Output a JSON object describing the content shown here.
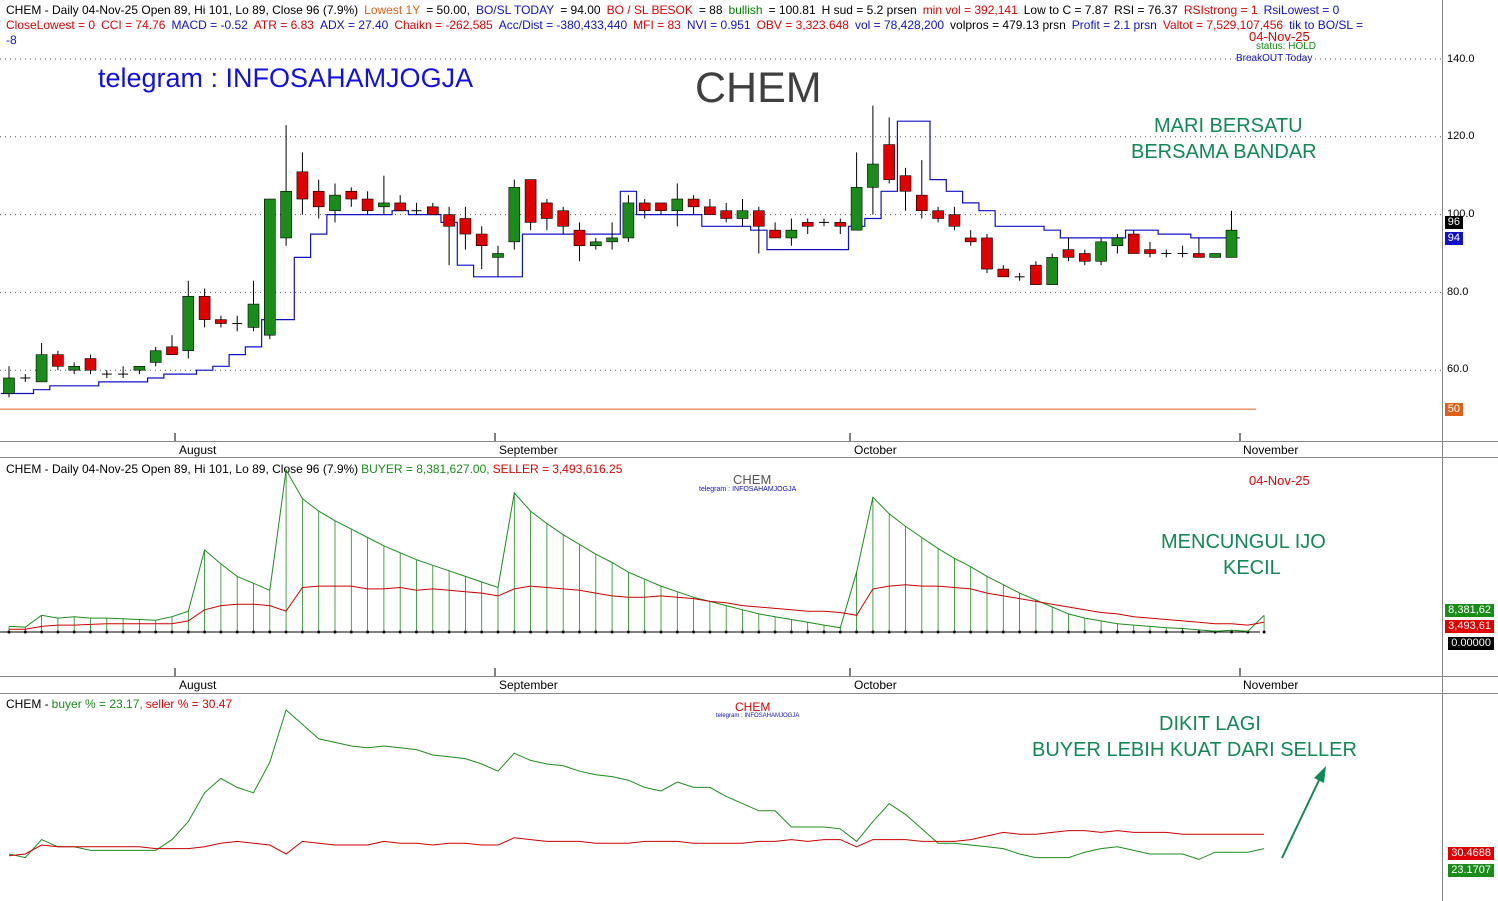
{
  "pane1": {
    "info_row1": [
      {
        "text": "CHEM - Daily 04-Nov-25 Open 89, Hi 101, Lo 89, Close 96 (7.9%)",
        "color": "#000"
      },
      {
        "text": "Lowest 1Y",
        "color": "#e0601a"
      },
      {
        "text": "= 50.00,",
        "color": "#000"
      },
      {
        "text": "BO/SL TODAY",
        "color": "#1010c8"
      },
      {
        "text": "= 94.00",
        "color": "#000"
      },
      {
        "text": "BO / SL BESOK",
        "color": "#e00000"
      },
      {
        "text": "= 88",
        "color": "#000"
      },
      {
        "text": "bullish",
        "color": "#008000"
      },
      {
        "text": "= 100.81",
        "color": "#000"
      },
      {
        "text": "H sud = 5.2 prsen",
        "color": "#000"
      },
      {
        "text": "min vol = 392,141",
        "color": "#e00000"
      },
      {
        "text": "Low to C = 7.87",
        "color": "#000"
      },
      {
        "text": "RSI = 76.37",
        "color": "#000"
      },
      {
        "text": "RSIstrong = 1",
        "color": "#e00000"
      },
      {
        "text": "RsiLowest = 0",
        "color": "#1010c8"
      }
    ],
    "info_row2": [
      {
        "text": "CloseLowest = 0",
        "color": "#e00000"
      },
      {
        "text": "CCI = 74.76",
        "color": "#e00000"
      },
      {
        "text": "MACD = -0.52",
        "color": "#1010c8"
      },
      {
        "text": "ATR = 6.83",
        "color": "#e00000"
      },
      {
        "text": "ADX = 27.40",
        "color": "#1010c8"
      },
      {
        "text": "Chaikn = -262,585",
        "color": "#e00000"
      },
      {
        "text": "Acc/Dist = -380,433,440",
        "color": "#1010c8"
      },
      {
        "text": "MFI = 83",
        "color": "#e00000"
      },
      {
        "text": "NVI = 0.951",
        "color": "#1010c8"
      },
      {
        "text": "OBV = 3,323.648",
        "color": "#e00000"
      },
      {
        "text": "vol = 78,428,200",
        "color": "#1010c8"
      },
      {
        "text": "volpros = 479.13 prsn",
        "color": "#000"
      },
      {
        "text": "Profit = 2.1 prsn",
        "color": "#1010c8"
      },
      {
        "text": "Valtot = 7,529,107,456",
        "color": "#e00000"
      },
      {
        "text": "tik to BO/SL =",
        "color": "#1010c8"
      }
    ],
    "info_row3": "-8",
    "date_label": "04-Nov-25",
    "status": "status: HOLD",
    "breakout": "BreakOUT Today",
    "telegram": "telegram : INFOSAHAMJOGJA",
    "ticker": "CHEM",
    "note_line1": "MARI BERSATU",
    "note_line2": "BERSAMA BANDAR",
    "tag_close": "96",
    "tag_bosl": "94",
    "tag_low": "50"
  },
  "pane2": {
    "info_prefix": "CHEM - Daily 04-Nov-25 Open 89, Hi 101, Lo 89, Close 96 (7.9%)",
    "buyer_text": "BUYER = 8,381,627.00,",
    "seller_text": "SELLER = 3,493,616.25",
    "ticker": "CHEM",
    "telegram": "telegram : INFOSAHAMJOGJA",
    "date_label": "04-Nov-25",
    "note_line1": "MENCUNGUL IJO",
    "note_line2": "KECIL",
    "tag_buyer": "8,381,62",
    "tag_seller": "3,493,61",
    "tag_zero": "0.00000"
  },
  "pane3": {
    "info_prefix": "CHEM -",
    "buyer_text": "buyer % = 23.17,",
    "seller_text": "seller % = 30.47",
    "ticker": "CHEM",
    "telegram": "telegram : INFOSAHAMJOGJA",
    "note_line1": "DIKIT LAGI",
    "note_line2": "BUYER LEBIH KUAT DARI SELLER",
    "tag_seller": "30.4688",
    "tag_buyer": "23.1707"
  },
  "colors": {
    "up": "#1a8c1a",
    "down": "#e00000",
    "stop_line": "#1010c8",
    "lowest_line": "#e0601a",
    "buyer_line": "#1a8c1a",
    "seller_line": "#cc0000",
    "note_green": "#118855"
  },
  "chart_data": [
    {
      "type": "candlestick",
      "title": "CHEM",
      "yticks": [
        "60.0",
        "80.0",
        "100.0",
        "120.0",
        "140.0"
      ],
      "ylim": [
        40,
        148
      ],
      "x_labels": [
        "August",
        "September",
        "October",
        "November"
      ],
      "candles": [
        {
          "o": 54,
          "h": 61,
          "l": 53,
          "c": 58
        },
        {
          "o": 58,
          "h": 59,
          "l": 57,
          "c": 58
        },
        {
          "o": 57,
          "h": 67,
          "l": 57,
          "c": 64
        },
        {
          "o": 64,
          "h": 65,
          "l": 60,
          "c": 61
        },
        {
          "o": 60,
          "h": 62,
          "l": 59,
          "c": 61
        },
        {
          "o": 63,
          "h": 64,
          "l": 59,
          "c": 60
        },
        {
          "o": 59,
          "h": 60,
          "l": 58,
          "c": 59
        },
        {
          "o": 59,
          "h": 61,
          "l": 58,
          "c": 59
        },
        {
          "o": 60,
          "h": 61,
          "l": 59,
          "c": 61
        },
        {
          "o": 62,
          "h": 66,
          "l": 61,
          "c": 65
        },
        {
          "o": 66,
          "h": 69,
          "l": 65,
          "c": 64
        },
        {
          "o": 65,
          "h": 83,
          "l": 63,
          "c": 79
        },
        {
          "o": 79,
          "h": 81,
          "l": 71,
          "c": 73
        },
        {
          "o": 73,
          "h": 74,
          "l": 71,
          "c": 72
        },
        {
          "o": 72,
          "h": 74,
          "l": 70,
          "c": 72
        },
        {
          "o": 71,
          "h": 83,
          "l": 70,
          "c": 77
        },
        {
          "o": 69,
          "h": 104,
          "l": 68,
          "c": 104
        },
        {
          "o": 94,
          "h": 123,
          "l": 92,
          "c": 106
        },
        {
          "o": 111,
          "h": 116,
          "l": 100,
          "c": 104
        },
        {
          "o": 106,
          "h": 109,
          "l": 99,
          "c": 102
        },
        {
          "o": 101,
          "h": 108,
          "l": 98,
          "c": 105
        },
        {
          "o": 106,
          "h": 107,
          "l": 102,
          "c": 104
        },
        {
          "o": 104,
          "h": 106,
          "l": 100,
          "c": 101
        },
        {
          "o": 102,
          "h": 110,
          "l": 100,
          "c": 103
        },
        {
          "o": 103,
          "h": 105,
          "l": 101,
          "c": 101
        },
        {
          "o": 101,
          "h": 103,
          "l": 100,
          "c": 101
        },
        {
          "o": 102,
          "h": 103,
          "l": 100,
          "c": 100
        },
        {
          "o": 100,
          "h": 102,
          "l": 87,
          "c": 97
        },
        {
          "o": 99,
          "h": 102,
          "l": 91,
          "c": 95
        },
        {
          "o": 95,
          "h": 97,
          "l": 86,
          "c": 92
        },
        {
          "o": 89,
          "h": 92,
          "l": 84,
          "c": 90
        },
        {
          "o": 93,
          "h": 109,
          "l": 91,
          "c": 107
        },
        {
          "o": 109,
          "h": 109,
          "l": 96,
          "c": 98
        },
        {
          "o": 103,
          "h": 104,
          "l": 96,
          "c": 99
        },
        {
          "o": 101,
          "h": 102,
          "l": 95,
          "c": 97
        },
        {
          "o": 96,
          "h": 98,
          "l": 88,
          "c": 92
        },
        {
          "o": 92,
          "h": 94,
          "l": 91,
          "c": 93
        },
        {
          "o": 93,
          "h": 98,
          "l": 91,
          "c": 94
        },
        {
          "o": 94,
          "h": 105,
          "l": 93,
          "c": 103
        },
        {
          "o": 103,
          "h": 104,
          "l": 99,
          "c": 101
        },
        {
          "o": 103,
          "h": 103,
          "l": 100,
          "c": 101
        },
        {
          "o": 101,
          "h": 108,
          "l": 97,
          "c": 104
        },
        {
          "o": 104,
          "h": 105,
          "l": 100,
          "c": 102
        },
        {
          "o": 102,
          "h": 104,
          "l": 100,
          "c": 100
        },
        {
          "o": 101,
          "h": 103,
          "l": 98,
          "c": 99
        },
        {
          "o": 99,
          "h": 104,
          "l": 97,
          "c": 101
        },
        {
          "o": 101,
          "h": 102,
          "l": 90,
          "c": 97
        },
        {
          "o": 96,
          "h": 98,
          "l": 94,
          "c": 94
        },
        {
          "o": 94,
          "h": 99,
          "l": 92,
          "c": 96
        },
        {
          "o": 98,
          "h": 99,
          "l": 95,
          "c": 97
        },
        {
          "o": 98,
          "h": 99,
          "l": 97,
          "c": 98
        },
        {
          "o": 98,
          "h": 99,
          "l": 95,
          "c": 97
        },
        {
          "o": 96,
          "h": 116,
          "l": 96,
          "c": 107
        },
        {
          "o": 107,
          "h": 128,
          "l": 100,
          "c": 113
        },
        {
          "o": 118,
          "h": 125,
          "l": 108,
          "c": 109
        },
        {
          "o": 110,
          "h": 112,
          "l": 101,
          "c": 106
        },
        {
          "o": 105,
          "h": 114,
          "l": 99,
          "c": 101
        },
        {
          "o": 101,
          "h": 102,
          "l": 98,
          "c": 99
        },
        {
          "o": 100,
          "h": 102,
          "l": 96,
          "c": 97
        },
        {
          "o": 94,
          "h": 96,
          "l": 92,
          "c": 93
        },
        {
          "o": 94,
          "h": 95,
          "l": 85,
          "c": 86
        },
        {
          "o": 86,
          "h": 87,
          "l": 84,
          "c": 84
        },
        {
          "o": 84,
          "h": 85,
          "l": 83,
          "c": 84
        },
        {
          "o": 87,
          "h": 88,
          "l": 82,
          "c": 82
        },
        {
          "o": 82,
          "h": 90,
          "l": 82,
          "c": 89
        },
        {
          "o": 91,
          "h": 94,
          "l": 88,
          "c": 89
        },
        {
          "o": 90,
          "h": 91,
          "l": 87,
          "c": 88
        },
        {
          "o": 88,
          "h": 94,
          "l": 87,
          "c": 93
        },
        {
          "o": 92,
          "h": 95,
          "l": 90,
          "c": 94
        },
        {
          "o": 95,
          "h": 96,
          "l": 90,
          "c": 90
        },
        {
          "o": 91,
          "h": 93,
          "l": 89,
          "c": 90
        },
        {
          "o": 90,
          "h": 91,
          "l": 89,
          "c": 90
        },
        {
          "o": 90,
          "h": 92,
          "l": 89,
          "c": 90
        },
        {
          "o": 90,
          "h": 94,
          "l": 89,
          "c": 89
        },
        {
          "o": 89,
          "h": 90,
          "l": 89,
          "c": 90
        },
        {
          "o": 89,
          "h": 101,
          "l": 89,
          "c": 96
        }
      ],
      "stop_line": [
        54,
        54,
        55,
        56,
        56,
        56,
        57,
        57,
        57,
        58,
        59,
        59,
        60,
        61,
        64,
        66,
        73,
        73,
        89,
        95,
        100,
        100,
        100,
        100,
        101,
        100,
        100,
        98,
        87,
        84,
        84,
        84,
        95,
        95,
        95,
        95,
        95,
        95,
        106,
        100,
        100,
        100,
        100,
        97,
        97,
        97,
        96,
        91,
        91,
        91,
        91,
        91,
        97,
        99,
        106,
        124,
        124,
        109,
        106,
        103,
        101,
        97,
        97,
        97,
        96,
        94,
        94,
        94,
        94,
        96,
        96,
        95,
        95,
        94,
        94,
        94
      ],
      "lowest_line": 50
    },
    {
      "type": "line",
      "series": [
        {
          "name": "BUYER",
          "values": [
            0.4,
            0.35,
            1.2,
            1.0,
            1.1,
            1.0,
            1.0,
            0.95,
            0.9,
            0.85,
            1.1,
            1.5,
            5.9,
            4.9,
            4.0,
            3.5,
            3.0,
            12.1,
            9.6,
            8.7,
            8.0,
            7.4,
            6.8,
            6.2,
            5.7,
            5.2,
            4.8,
            4.4,
            4.0,
            3.6,
            3.2,
            10.0,
            8.7,
            7.8,
            7.0,
            6.3,
            5.6,
            5.0,
            4.3,
            3.8,
            3.3,
            2.9,
            2.5,
            2.2,
            1.9,
            1.6,
            1.3,
            1.1,
            0.9,
            0.7,
            0.5,
            0.3,
            4.3,
            9.7,
            8.5,
            7.6,
            6.8,
            6.0,
            5.3,
            4.7,
            4.0,
            3.4,
            2.8,
            2.3,
            1.8,
            1.3,
            1.0,
            0.8,
            0.6,
            0.5,
            0.4,
            0.3,
            0.25,
            0.15,
            0.05,
            0.12,
            0.05,
            1.2
          ]
        },
        {
          "name": "SELLER",
          "values": [
            0.2,
            0.2,
            0.4,
            0.5,
            0.5,
            0.55,
            0.6,
            0.6,
            0.6,
            0.6,
            0.6,
            0.8,
            1.6,
            1.9,
            2.0,
            2.0,
            1.9,
            1.5,
            3.2,
            3.3,
            3.3,
            3.3,
            3.1,
            3.1,
            3.2,
            3.0,
            3.1,
            3.0,
            2.9,
            2.8,
            2.6,
            3.1,
            3.3,
            3.2,
            3.1,
            3.0,
            2.8,
            2.6,
            2.5,
            2.5,
            2.6,
            2.5,
            2.4,
            2.2,
            2.1,
            1.9,
            1.8,
            1.7,
            1.6,
            1.5,
            1.5,
            1.4,
            1.2,
            3.1,
            3.3,
            3.4,
            3.3,
            3.3,
            3.2,
            3.1,
            2.8,
            2.6,
            2.4,
            2.2,
            2.0,
            1.8,
            1.6,
            1.4,
            1.3,
            1.1,
            1.0,
            0.9,
            0.8,
            0.7,
            0.6,
            0.6,
            0.5,
            0.7
          ]
        }
      ],
      "x_labels": [
        "August",
        "September",
        "October",
        "November"
      ]
    },
    {
      "type": "line",
      "series": [
        {
          "name": "buyer %",
          "values": [
            20,
            18,
            28,
            24,
            24,
            22,
            22,
            22,
            22,
            22,
            28,
            38,
            54,
            62,
            57,
            54,
            71,
            100,
            92,
            84,
            82,
            80,
            79,
            80,
            79,
            78,
            75,
            74,
            73,
            70,
            66,
            76,
            72,
            70,
            69,
            66,
            64,
            63,
            61,
            57,
            55,
            60,
            57,
            57,
            52,
            48,
            44,
            44,
            35,
            35,
            35,
            34,
            27,
            38,
            48,
            42,
            34,
            26,
            26,
            25,
            24,
            23,
            20,
            18,
            18,
            18,
            21,
            23,
            24,
            22,
            20,
            20,
            20,
            17,
            21,
            21,
            21,
            23
          ]
        },
        {
          "name": "seller %",
          "values": [
            19,
            20,
            25,
            24,
            24,
            24,
            24,
            24,
            24,
            23,
            23,
            23,
            24,
            26,
            27,
            26,
            25,
            20,
            27,
            26,
            25,
            25,
            25,
            27,
            26,
            26,
            25,
            26,
            26,
            25,
            25,
            29,
            28,
            27,
            27,
            27,
            26,
            26,
            26,
            27,
            27,
            27,
            26,
            26,
            26,
            26,
            27,
            27,
            28,
            27,
            28,
            28,
            24,
            28,
            28,
            28,
            27,
            27,
            27,
            28,
            30,
            32,
            31,
            31,
            32,
            33,
            33,
            32,
            33,
            32,
            32,
            32,
            31,
            31,
            31,
            31,
            31,
            31
          ]
        }
      ]
    }
  ]
}
